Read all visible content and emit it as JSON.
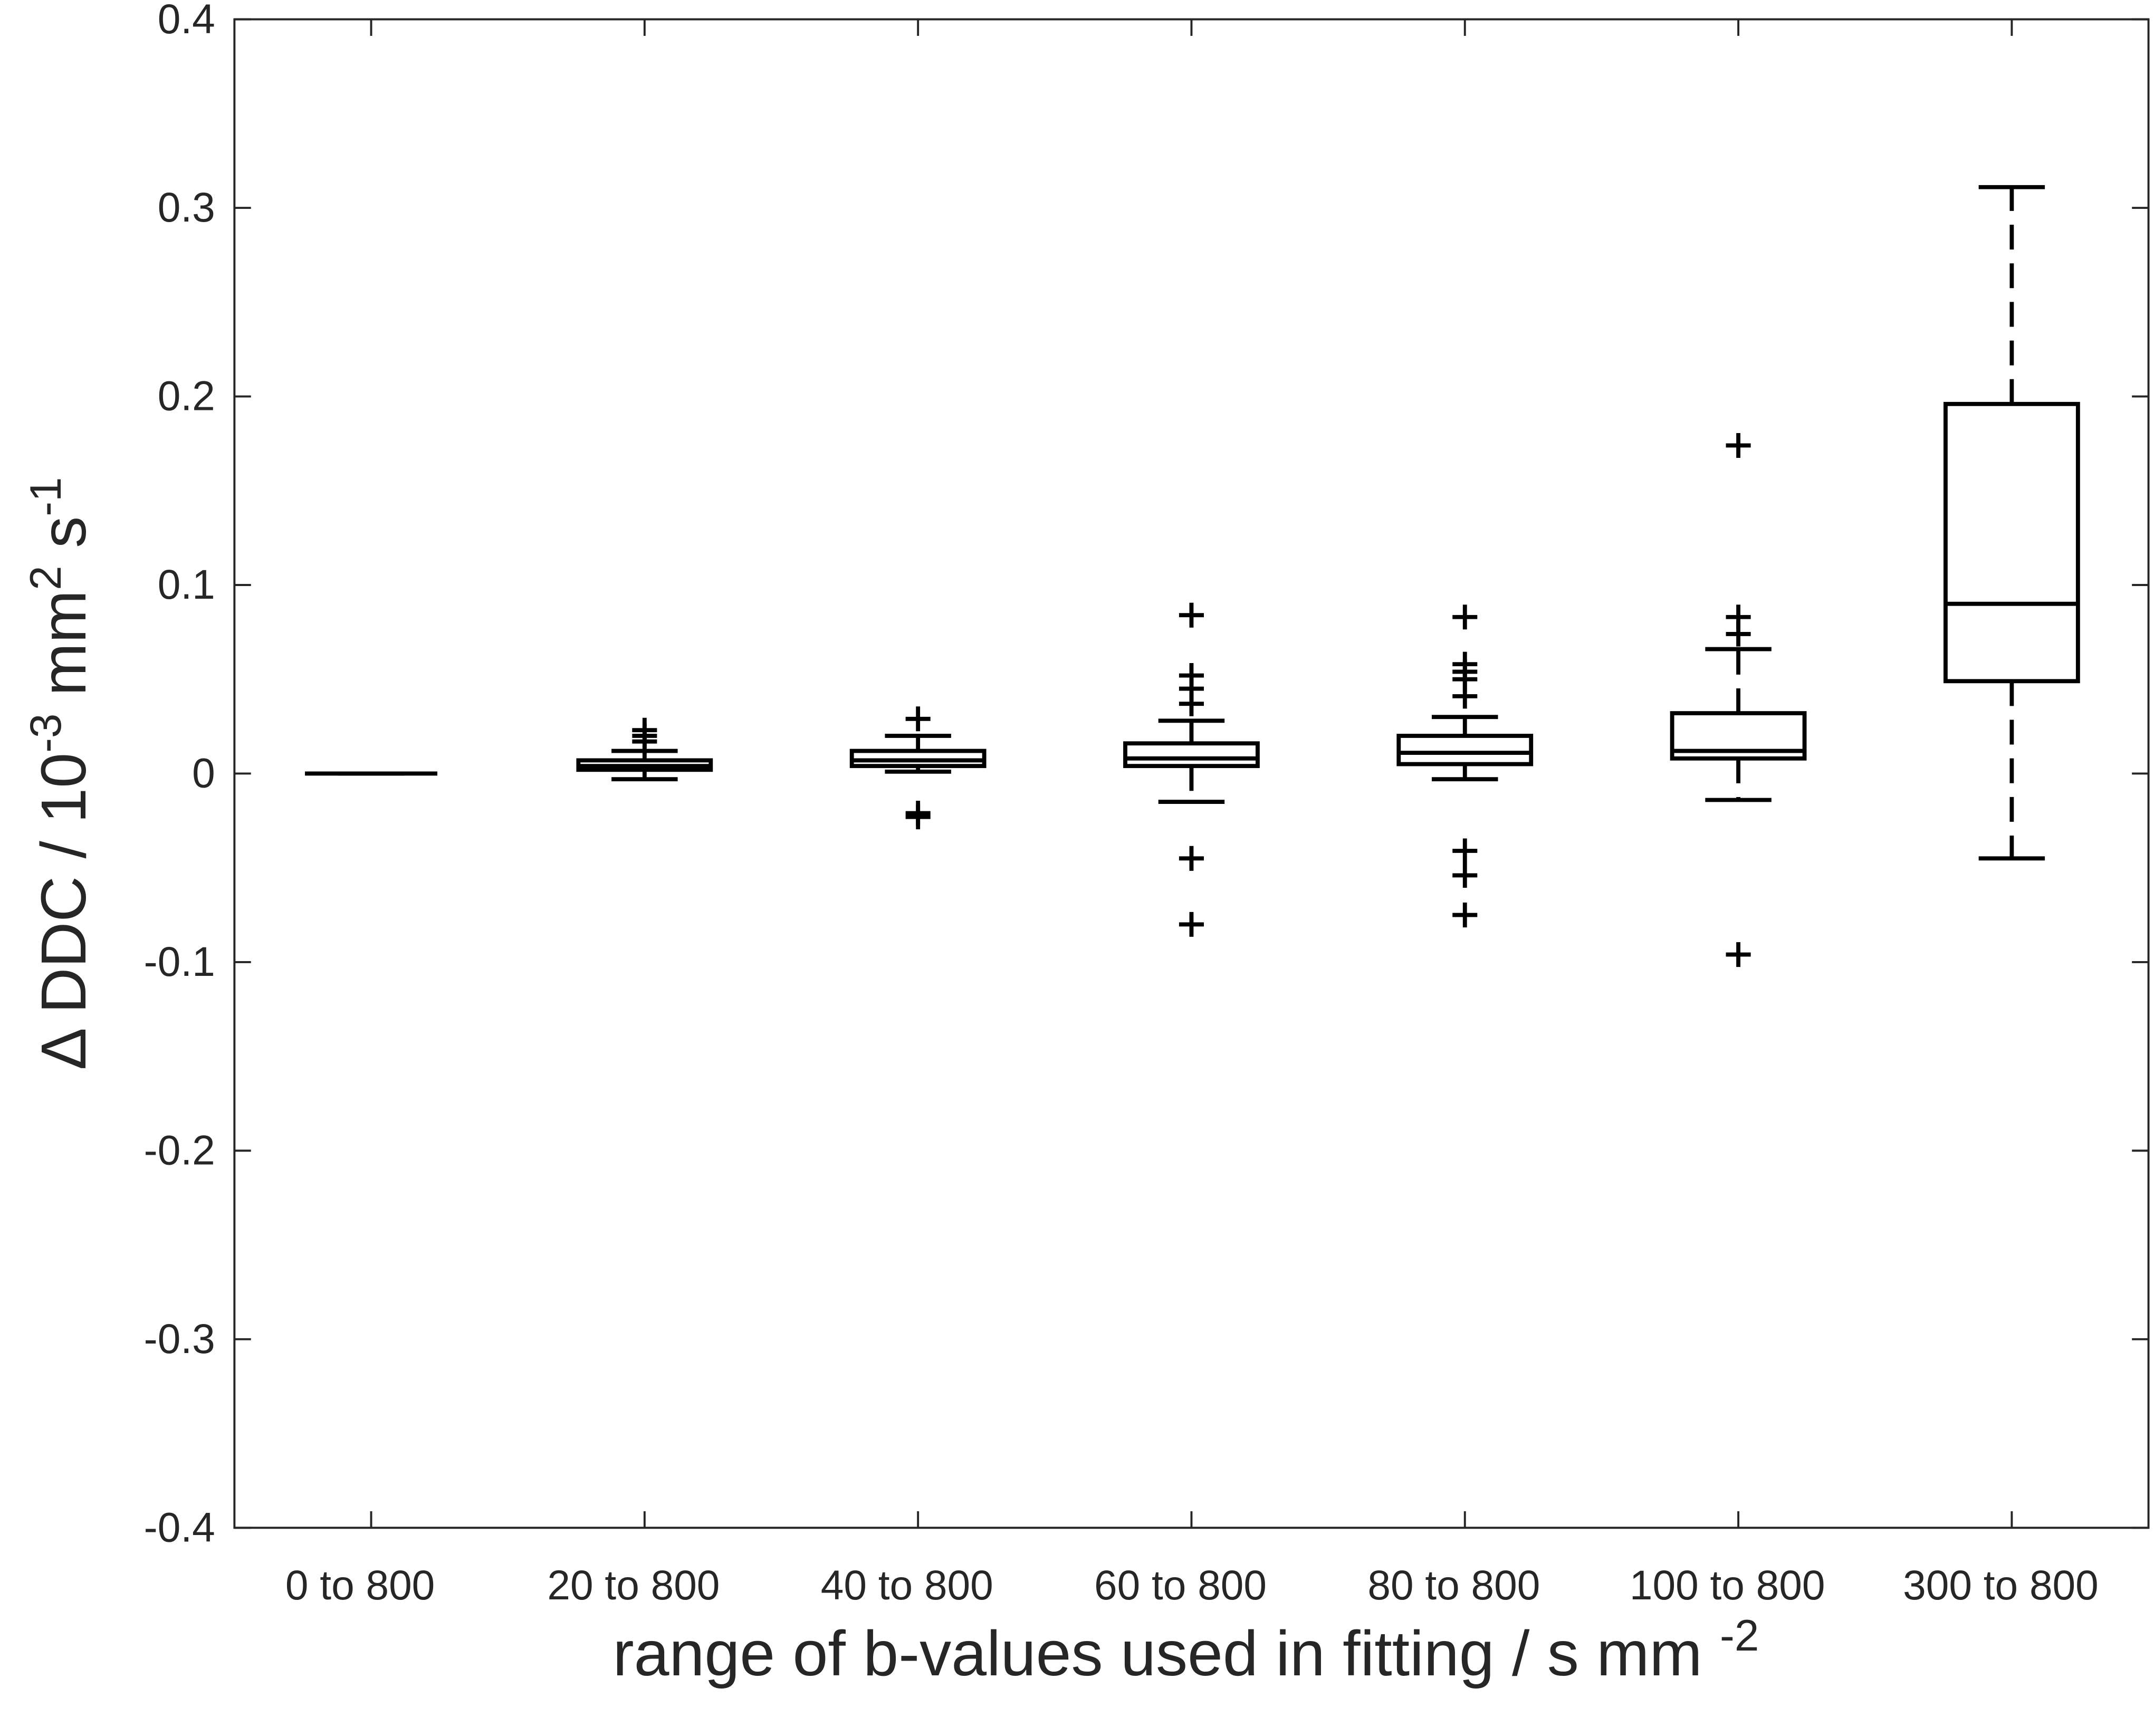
{
  "chart_data": {
    "type": "box",
    "y_label": [
      "Δ DDC / 10",
      "-3",
      " mm",
      "2",
      " s",
      "-1"
    ],
    "x_label": [
      "range of b-values used in fitting / s mm ",
      "-2"
    ],
    "categories": [
      "0 to 800",
      "20 to 800",
      "40 to 800",
      "60 to 800",
      "80 to 800",
      "100 to 800",
      "300 to 800"
    ],
    "color": "#000000",
    "boxes": [
      {
        "whisker_low": 0,
        "q1": 0,
        "median": 0,
        "q3": 0,
        "whisker_high": 0,
        "outliers": []
      },
      {
        "whisker_low": -0.003,
        "q1": 0.002,
        "median": 0.004,
        "q3": 0.007,
        "whisker_high": 0.012,
        "outliers": [
          0.023,
          0.02,
          0.017
        ]
      },
      {
        "whisker_low": 0.001,
        "q1": 0.004,
        "median": 0.007,
        "q3": 0.012,
        "whisker_high": 0.02,
        "outliers": [
          0.029,
          -0.021,
          -0.023
        ]
      },
      {
        "whisker_low": -0.015,
        "q1": 0.004,
        "median": 0.008,
        "q3": 0.016,
        "whisker_high": 0.028,
        "outliers": [
          0.084,
          0.052,
          0.045,
          0.037,
          -0.045,
          -0.08
        ]
      },
      {
        "whisker_low": -0.003,
        "q1": 0.005,
        "median": 0.011,
        "q3": 0.02,
        "whisker_high": 0.03,
        "outliers": [
          0.083,
          0.058,
          0.054,
          0.05,
          0.041,
          -0.041,
          -0.054,
          -0.075
        ]
      },
      {
        "whisker_low": -0.014,
        "q1": 0.008,
        "median": 0.012,
        "q3": 0.032,
        "whisker_high": 0.066,
        "outliers": [
          0.174,
          0.083,
          0.074,
          -0.096
        ]
      },
      {
        "whisker_low": -0.045,
        "q1": 0.049,
        "median": 0.09,
        "q3": 0.196,
        "whisker_high": 0.311,
        "outliers": []
      }
    ],
    "ylim": [
      -0.4,
      0.4
    ],
    "yticks": [
      -0.4,
      -0.3,
      -0.2,
      -0.1,
      0,
      0.1,
      0.2,
      0.3,
      0.4
    ],
    "grid": false
  }
}
